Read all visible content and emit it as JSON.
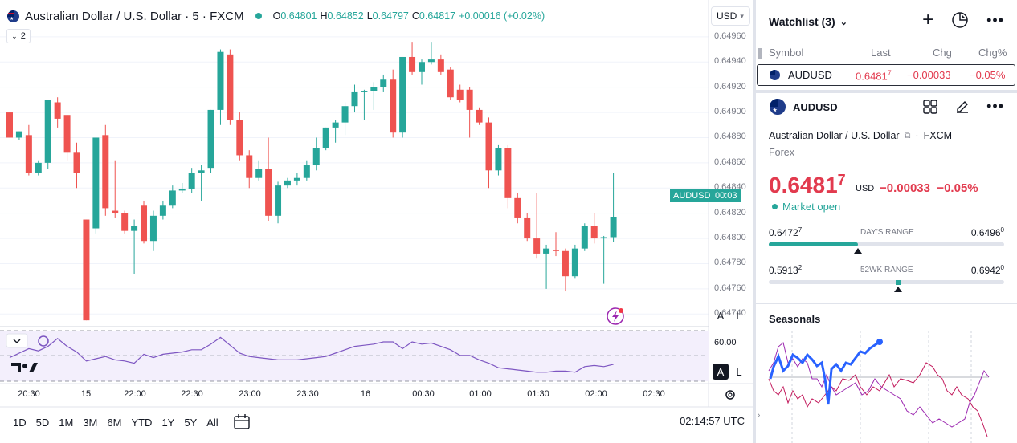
{
  "legend": {
    "title": "Australian Dollar / U.S. Dollar · 5 · FXCM",
    "o_label": "O",
    "o_value": "0.64801",
    "h_label": "H",
    "h_value": "0.64852",
    "l_label": "L",
    "l_value": "0.64797",
    "c_label": "C",
    "c_value": "0.64817",
    "change": "+0.00016 (+0.02%)"
  },
  "collapse_count": "2",
  "currency": "USD",
  "price_axis": [
    "0.64960",
    "0.64940",
    "0.64920",
    "0.64900",
    "0.64880",
    "0.64860",
    "0.64840",
    "0.64820",
    "0.64800",
    "0.64780",
    "0.64760",
    "0.64740"
  ],
  "price_tag": {
    "symbol": "AUDUSD",
    "countdown": "00:03"
  },
  "indicator_axis": [
    "60.00"
  ],
  "time_axis": [
    "20:30",
    "15",
    "22:00",
    "22:30",
    "23:00",
    "23:30",
    "16",
    "00:30",
    "01:00",
    "01:30",
    "02:00",
    "02:30"
  ],
  "scale_buttons": {
    "auto": "A",
    "log": "L"
  },
  "ranges": [
    "1D",
    "5D",
    "1M",
    "3M",
    "6M",
    "YTD",
    "1Y",
    "5Y",
    "All"
  ],
  "clock": "02:14:57 UTC",
  "watchlist": {
    "title": "Watchlist (3)",
    "columns": {
      "symbol": "Symbol",
      "last": "Last",
      "chg": "Chg",
      "chgp": "Chg%"
    },
    "row": {
      "symbol": "AUDUSD",
      "last_main": "0.6481",
      "last_sup": "7",
      "chg": "−0.00033",
      "chgp": "−0.05%"
    }
  },
  "detail": {
    "symbol": "AUDUSD",
    "name": "Australian Dollar / U.S. Dollar",
    "exchange": "FXCM",
    "type": "Forex",
    "price_main": "0.6481",
    "price_sup": "7",
    "currency": "USD",
    "change": "−0.00033",
    "change_pct": "−0.05%",
    "market_status": "Market open",
    "days_range": {
      "label": "DAY'S RANGE",
      "low_main": "0.6472",
      "low_sup": "7",
      "high_main": "0.6496",
      "high_sup": "0",
      "position": 0.38
    },
    "wk52_range": {
      "label": "52WK RANGE",
      "low_main": "0.5913",
      "low_sup": "2",
      "high_main": "0.6942",
      "high_sup": "0",
      "position": 0.55
    }
  },
  "seasonals": {
    "title": "Seasonals"
  },
  "colors": {
    "up": "#26a69a",
    "down": "#ef5350",
    "accent": "#2962ff",
    "rsi": "#7e57c2",
    "price_red": "#e23a4e"
  },
  "chart_data": {
    "type": "candlestick",
    "ylim": [
      0.6473,
      0.64965
    ],
    "candles": [
      {
        "o": 0.649,
        "h": 0.649,
        "l": 0.6488,
        "c": 0.6488
      },
      {
        "o": 0.6488,
        "h": 0.64885,
        "l": 0.64878,
        "c": 0.64885
      },
      {
        "o": 0.64882,
        "h": 0.6489,
        "l": 0.6485,
        "c": 0.64852
      },
      {
        "o": 0.64852,
        "h": 0.64862,
        "l": 0.6485,
        "c": 0.6486
      },
      {
        "o": 0.6486,
        "h": 0.6491,
        "l": 0.64855,
        "c": 0.6491
      },
      {
        "o": 0.64908,
        "h": 0.64912,
        "l": 0.64888,
        "c": 0.64895
      },
      {
        "o": 0.64898,
        "h": 0.64898,
        "l": 0.64862,
        "c": 0.64868
      },
      {
        "o": 0.64868,
        "h": 0.64876,
        "l": 0.6484,
        "c": 0.64852
      },
      {
        "o": 0.64815,
        "h": 0.64815,
        "l": 0.64735,
        "c": 0.64735
      },
      {
        "o": 0.64808,
        "h": 0.6488,
        "l": 0.64804,
        "c": 0.6488
      },
      {
        "o": 0.64882,
        "h": 0.6489,
        "l": 0.64818,
        "c": 0.64824
      },
      {
        "o": 0.64822,
        "h": 0.64862,
        "l": 0.64816,
        "c": 0.6482
      },
      {
        "o": 0.6482,
        "h": 0.64822,
        "l": 0.64804,
        "c": 0.64806
      },
      {
        "o": 0.64806,
        "h": 0.64815,
        "l": 0.64772,
        "c": 0.6481
      },
      {
        "o": 0.64826,
        "h": 0.6483,
        "l": 0.64796,
        "c": 0.64798
      },
      {
        "o": 0.64798,
        "h": 0.64822,
        "l": 0.6479,
        "c": 0.64818
      },
      {
        "o": 0.64818,
        "h": 0.6483,
        "l": 0.64815,
        "c": 0.64826
      },
      {
        "o": 0.64826,
        "h": 0.64842,
        "l": 0.64824,
        "c": 0.64838
      },
      {
        "o": 0.64838,
        "h": 0.64844,
        "l": 0.64836,
        "c": 0.64839
      },
      {
        "o": 0.64839,
        "h": 0.64856,
        "l": 0.64836,
        "c": 0.64852
      },
      {
        "o": 0.64852,
        "h": 0.64858,
        "l": 0.6483,
        "c": 0.64854
      },
      {
        "o": 0.64856,
        "h": 0.64902,
        "l": 0.64852,
        "c": 0.64902
      },
      {
        "o": 0.64902,
        "h": 0.6495,
        "l": 0.6489,
        "c": 0.64948
      },
      {
        "o": 0.64946,
        "h": 0.6495,
        "l": 0.6489,
        "c": 0.64894
      },
      {
        "o": 0.64894,
        "h": 0.649,
        "l": 0.64862,
        "c": 0.64866
      },
      {
        "o": 0.64866,
        "h": 0.6487,
        "l": 0.6484,
        "c": 0.64848
      },
      {
        "o": 0.64848,
        "h": 0.64862,
        "l": 0.64846,
        "c": 0.64855
      },
      {
        "o": 0.64855,
        "h": 0.6488,
        "l": 0.64814,
        "c": 0.64818
      },
      {
        "o": 0.64818,
        "h": 0.64845,
        "l": 0.64812,
        "c": 0.64842
      },
      {
        "o": 0.64842,
        "h": 0.64848,
        "l": 0.6484,
        "c": 0.64846
      },
      {
        "o": 0.64846,
        "h": 0.64852,
        "l": 0.64842,
        "c": 0.64848
      },
      {
        "o": 0.64848,
        "h": 0.64862,
        "l": 0.64846,
        "c": 0.64858
      },
      {
        "o": 0.64858,
        "h": 0.6488,
        "l": 0.64854,
        "c": 0.64872
      },
      {
        "o": 0.64872,
        "h": 0.64888,
        "l": 0.6487,
        "c": 0.64888
      },
      {
        "o": 0.64888,
        "h": 0.64894,
        "l": 0.64876,
        "c": 0.64892
      },
      {
        "o": 0.64892,
        "h": 0.64908,
        "l": 0.64882,
        "c": 0.64905
      },
      {
        "o": 0.64905,
        "h": 0.64922,
        "l": 0.649,
        "c": 0.64916
      },
      {
        "o": 0.64916,
        "h": 0.64918,
        "l": 0.64894,
        "c": 0.64917
      },
      {
        "o": 0.64917,
        "h": 0.64924,
        "l": 0.64902,
        "c": 0.6492
      },
      {
        "o": 0.6492,
        "h": 0.6493,
        "l": 0.64916,
        "c": 0.64926
      },
      {
        "o": 0.64926,
        "h": 0.64934,
        "l": 0.6488,
        "c": 0.64884
      },
      {
        "o": 0.64884,
        "h": 0.64944,
        "l": 0.6488,
        "c": 0.64944
      },
      {
        "o": 0.64944,
        "h": 0.64956,
        "l": 0.6493,
        "c": 0.64932
      },
      {
        "o": 0.64932,
        "h": 0.64942,
        "l": 0.64922,
        "c": 0.6494
      },
      {
        "o": 0.6494,
        "h": 0.64956,
        "l": 0.64938,
        "c": 0.64942
      },
      {
        "o": 0.64942,
        "h": 0.64946,
        "l": 0.6493,
        "c": 0.64932
      },
      {
        "o": 0.64934,
        "h": 0.64936,
        "l": 0.6491,
        "c": 0.64912
      },
      {
        "o": 0.64918,
        "h": 0.64922,
        "l": 0.64908,
        "c": 0.6491
      },
      {
        "o": 0.64918,
        "h": 0.6492,
        "l": 0.6488,
        "c": 0.64902
      },
      {
        "o": 0.64902,
        "h": 0.64904,
        "l": 0.6489,
        "c": 0.64892
      },
      {
        "o": 0.64892,
        "h": 0.64896,
        "l": 0.6484,
        "c": 0.64854
      },
      {
        "o": 0.64854,
        "h": 0.64874,
        "l": 0.6485,
        "c": 0.64872
      },
      {
        "o": 0.64872,
        "h": 0.64874,
        "l": 0.64824,
        "c": 0.64832
      },
      {
        "o": 0.64832,
        "h": 0.64836,
        "l": 0.64812,
        "c": 0.64816
      },
      {
        "o": 0.64816,
        "h": 0.6482,
        "l": 0.64798,
        "c": 0.648
      },
      {
        "o": 0.648,
        "h": 0.64836,
        "l": 0.64784,
        "c": 0.64788
      },
      {
        "o": 0.64788,
        "h": 0.64795,
        "l": 0.6476,
        "c": 0.64792
      },
      {
        "o": 0.64791,
        "h": 0.64805,
        "l": 0.64786,
        "c": 0.6479
      },
      {
        "o": 0.6479,
        "h": 0.64792,
        "l": 0.64758,
        "c": 0.6477
      },
      {
        "o": 0.6477,
        "h": 0.64795,
        "l": 0.64768,
        "c": 0.64792
      },
      {
        "o": 0.64792,
        "h": 0.64812,
        "l": 0.6479,
        "c": 0.6481
      },
      {
        "o": 0.6481,
        "h": 0.6482,
        "l": 0.64796,
        "c": 0.648
      },
      {
        "o": 0.648,
        "h": 0.64802,
        "l": 0.64764,
        "c": 0.64801
      },
      {
        "o": 0.64801,
        "h": 0.64852,
        "l": 0.64797,
        "c": 0.64817
      }
    ],
    "rsi": [
      46,
      50,
      54,
      52,
      56,
      63,
      56,
      51,
      43,
      45,
      47,
      44,
      43,
      41,
      49,
      46,
      49,
      50,
      51,
      53,
      53,
      58,
      64,
      57,
      50,
      47,
      46,
      45,
      44,
      44,
      44,
      45,
      46,
      47,
      50,
      53,
      56,
      57,
      58,
      60,
      60,
      54,
      60,
      58,
      59,
      56,
      53,
      48,
      48,
      44,
      41,
      37,
      36,
      35,
      34,
      33,
      33,
      34,
      34,
      33,
      38,
      39,
      38,
      40
    ]
  }
}
